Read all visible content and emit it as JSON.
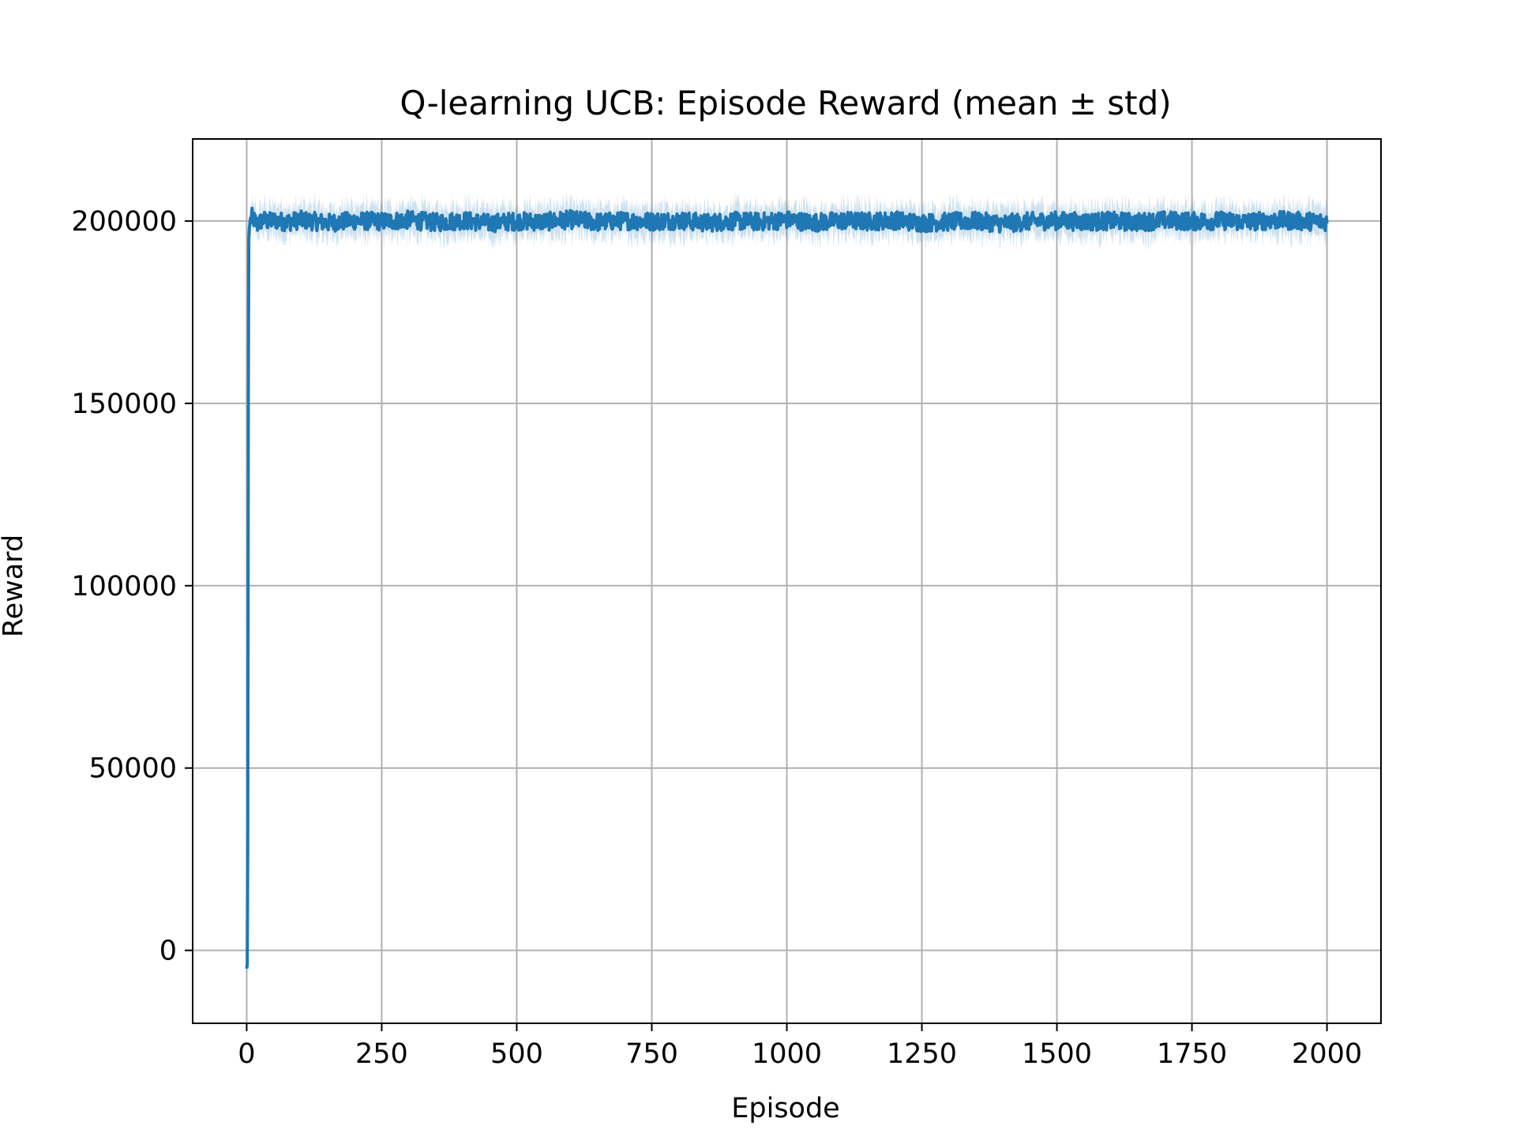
{
  "chart_data": {
    "type": "line",
    "title": "Q-learning UCB: Episode Reward (mean ± std)",
    "xlabel": "Episode",
    "ylabel": "Reward",
    "xlim": [
      -100,
      2100
    ],
    "ylim": [
      -20000,
      222500
    ],
    "xticks": [
      0,
      250,
      500,
      750,
      1000,
      1250,
      1500,
      1750,
      2000
    ],
    "xtick_labels": [
      "0",
      "250",
      "500",
      "750",
      "1000",
      "1250",
      "1500",
      "1750",
      "2000"
    ],
    "yticks": [
      0,
      50000,
      100000,
      150000,
      200000
    ],
    "ytick_labels": [
      "0",
      "50000",
      "100000",
      "150000",
      "200000"
    ],
    "grid": true,
    "legend": "none",
    "colors": {
      "line": "#1f77b4",
      "band": "#1f77b4",
      "grid": "#b0b0b0",
      "frame": "#000000"
    },
    "series": [
      {
        "x": [
          0,
          1,
          2,
          3,
          4,
          5,
          6,
          8,
          10,
          15,
          20,
          30,
          40,
          50,
          75,
          100,
          150,
          200,
          250,
          300,
          350,
          400,
          450,
          500,
          550,
          600,
          650,
          700,
          750,
          800,
          850,
          900,
          950,
          1000,
          1050,
          1100,
          1150,
          1200,
          1250,
          1300,
          1350,
          1400,
          1450,
          1500,
          1550,
          1600,
          1650,
          1700,
          1750,
          1800,
          1850,
          1900,
          1950,
          2000
        ],
        "y": [
          -5000,
          -4000,
          30000,
          150000,
          195000,
          198000,
          199500,
          200500,
          201000,
          200000,
          199000,
          200500,
          199800,
          200200,
          199700,
          200300,
          199500,
          200100,
          199900,
          200300,
          199600,
          200200,
          199400,
          200000,
          199800,
          200400,
          199700,
          200100,
          199900,
          200200,
          199500,
          200000,
          199800,
          200300,
          199600,
          200100,
          199900,
          200200,
          199500,
          199800,
          200000,
          199300,
          199900,
          200100,
          199800,
          200000,
          199700,
          200200,
          199900,
          200100,
          199800,
          200200,
          200000,
          199800
        ],
        "std": 4000
      }
    ]
  }
}
